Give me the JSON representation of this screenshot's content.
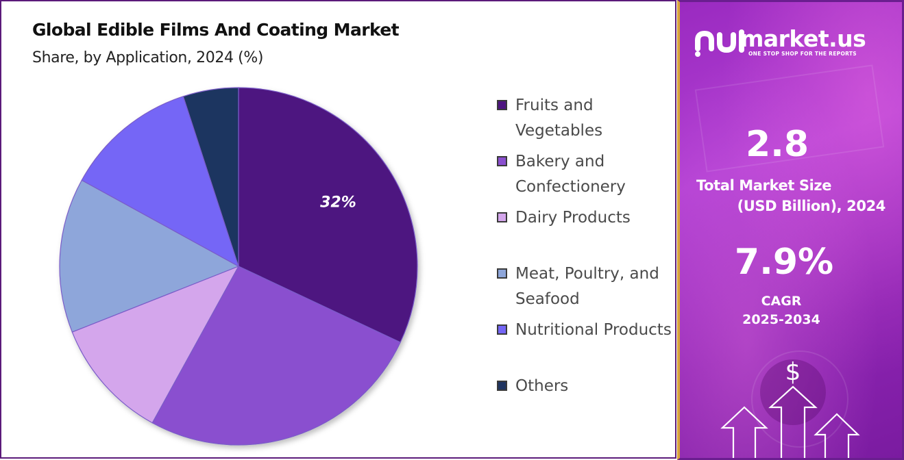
{
  "chart_data": {
    "type": "pie",
    "title": "Global Edible Films And Coating Market",
    "subtitle": "Share, by Application, 2024 (%)",
    "categories": [
      "Fruits and Vegetables",
      "Bakery and Confectionery",
      "Dairy Products",
      "Meat, Poultry, and Seafood",
      "Nutritional Products",
      "Others"
    ],
    "values": [
      32,
      26,
      11,
      14,
      12,
      5
    ],
    "colors": [
      "#4d1480",
      "#8a4fcf",
      "#d4a6ec",
      "#8ea6da",
      "#7466f6",
      "#1f3461"
    ],
    "data_labels": [
      "32%",
      "",
      "",
      "",
      "",
      ""
    ],
    "legend_position": "right"
  },
  "brand": {
    "name": "market.us",
    "tagline": "ONE STOP SHOP FOR THE REPORTS"
  },
  "stats": {
    "market_size_value": "2.8",
    "market_size_label_line1": "Total Market Size",
    "market_size_label_line2": "(USD Billion), 2024",
    "cagr_value": "7.9%",
    "cagr_label_line1": "CAGR",
    "cagr_label_line2": "2025-2034"
  }
}
